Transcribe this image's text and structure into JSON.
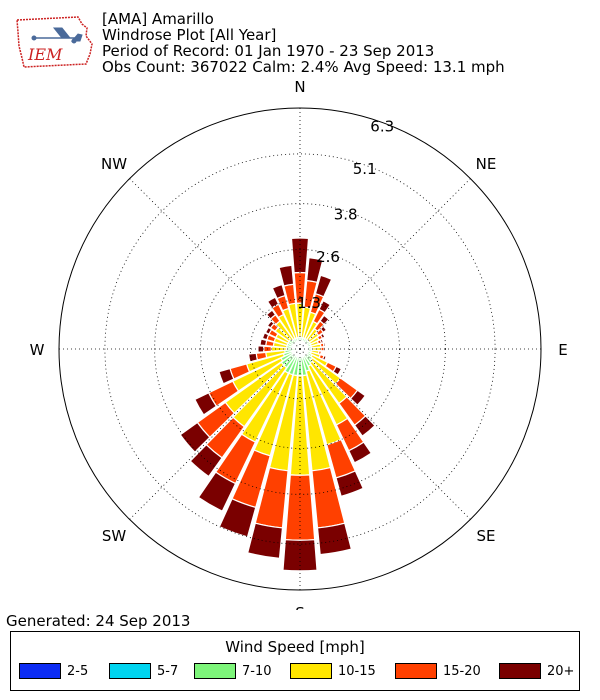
{
  "logo_text": "IEM",
  "header": {
    "station": "[AMA] Amarillo",
    "plot_title": "Windrose Plot [All Year]",
    "period": "Period of Record: 01 Jan 1970 - 23 Sep 2013",
    "stats": "Obs Count: 367022 Calm: 2.4% Avg Speed: 13.1 mph"
  },
  "generated": "Generated: 24 Sep 2013",
  "legend": {
    "title": "Wind Speed [mph]",
    "items": [
      {
        "label": "2-5",
        "color": "#0c2cf4"
      },
      {
        "label": "5-7",
        "color": "#00d4f0"
      },
      {
        "label": "7-10",
        "color": "#7df57a"
      },
      {
        "label": "10-15",
        "color": "#ffe600"
      },
      {
        "label": "15-20",
        "color": "#ff4000"
      },
      {
        "label": "20+",
        "color": "#7a0000"
      }
    ]
  },
  "chart_data": {
    "type": "windrose",
    "radial_ticks": [
      1.3,
      2.6,
      3.8,
      5.1,
      6.3
    ],
    "radial_max": 6.3,
    "direction_labels": [
      "N",
      "NE",
      "E",
      "SE",
      "S",
      "SW",
      "W",
      "NW"
    ],
    "bin_width_deg": 10,
    "bins": [
      "2-5",
      "5-7",
      "7-10",
      "10-15",
      "15-20",
      "20+"
    ],
    "series": [
      {
        "dir": 0,
        "values": [
          0.0,
          0.1,
          0.2,
          0.9,
          0.8,
          0.9
        ]
      },
      {
        "dir": 10,
        "values": [
          0.0,
          0.1,
          0.2,
          0.8,
          0.7,
          0.6
        ]
      },
      {
        "dir": 20,
        "values": [
          0.0,
          0.1,
          0.2,
          0.7,
          0.5,
          0.5
        ]
      },
      {
        "dir": 30,
        "values": [
          0.0,
          0.1,
          0.2,
          0.5,
          0.35,
          0.25
        ]
      },
      {
        "dir": 40,
        "values": [
          0.0,
          0.1,
          0.2,
          0.35,
          0.25,
          0.18
        ]
      },
      {
        "dir": 50,
        "values": [
          0.0,
          0.1,
          0.2,
          0.3,
          0.15,
          0.1
        ]
      },
      {
        "dir": 60,
        "values": [
          0.0,
          0.1,
          0.2,
          0.25,
          0.1,
          0.07
        ]
      },
      {
        "dir": 70,
        "values": [
          0.0,
          0.1,
          0.2,
          0.2,
          0.08,
          0.05
        ]
      },
      {
        "dir": 80,
        "values": [
          0.0,
          0.1,
          0.2,
          0.25,
          0.08,
          0.04
        ]
      },
      {
        "dir": 90,
        "values": [
          0.0,
          0.1,
          0.2,
          0.25,
          0.08,
          0.04
        ]
      },
      {
        "dir": 100,
        "values": [
          0.0,
          0.1,
          0.2,
          0.2,
          0.06,
          0.03
        ]
      },
      {
        "dir": 110,
        "values": [
          0.0,
          0.1,
          0.2,
          0.25,
          0.1,
          0.06
        ]
      },
      {
        "dir": 120,
        "values": [
          0.0,
          0.1,
          0.25,
          0.45,
          0.25,
          0.15
        ]
      },
      {
        "dir": 130,
        "values": [
          0.0,
          0.1,
          0.3,
          0.9,
          0.55,
          0.25
        ]
      },
      {
        "dir": 140,
        "values": [
          0.0,
          0.1,
          0.35,
          1.3,
          0.7,
          0.35
        ]
      },
      {
        "dir": 150,
        "values": [
          0.0,
          0.1,
          0.4,
          1.7,
          0.75,
          0.35
        ]
      },
      {
        "dir": 160,
        "values": [
          0.0,
          0.1,
          0.5,
          2.0,
          0.9,
          0.5
        ]
      },
      {
        "dir": 170,
        "values": [
          0.0,
          0.1,
          0.6,
          2.5,
          1.5,
          0.7
        ]
      },
      {
        "dir": 180,
        "values": [
          0.0,
          0.1,
          0.6,
          2.6,
          1.7,
          0.8
        ]
      },
      {
        "dir": 190,
        "values": [
          0.0,
          0.1,
          0.6,
          2.5,
          1.5,
          0.8
        ]
      },
      {
        "dir": 200,
        "values": [
          0.0,
          0.1,
          0.6,
          2.2,
          1.4,
          0.8
        ]
      },
      {
        "dir": 210,
        "values": [
          0.0,
          0.1,
          0.6,
          2.0,
          1.2,
          0.8
        ]
      },
      {
        "dir": 220,
        "values": [
          0.0,
          0.1,
          0.5,
          1.9,
          1.0,
          0.6
        ]
      },
      {
        "dir": 230,
        "values": [
          0.0,
          0.1,
          0.5,
          1.8,
          0.9,
          0.55
        ]
      },
      {
        "dir": 240,
        "values": [
          0.0,
          0.1,
          0.45,
          1.4,
          0.7,
          0.4
        ]
      },
      {
        "dir": 250,
        "values": [
          0.0,
          0.1,
          0.35,
          1.0,
          0.45,
          0.3
        ]
      },
      {
        "dir": 260,
        "values": [
          0.0,
          0.1,
          0.3,
          0.5,
          0.25,
          0.2
        ]
      },
      {
        "dir": 270,
        "values": [
          0.0,
          0.1,
          0.25,
          0.4,
          0.2,
          0.15
        ]
      },
      {
        "dir": 280,
        "values": [
          0.0,
          0.1,
          0.25,
          0.35,
          0.2,
          0.15
        ]
      },
      {
        "dir": 290,
        "values": [
          0.0,
          0.1,
          0.25,
          0.35,
          0.2,
          0.12
        ]
      },
      {
        "dir": 300,
        "values": [
          0.0,
          0.1,
          0.25,
          0.35,
          0.2,
          0.1
        ]
      },
      {
        "dir": 310,
        "values": [
          0.0,
          0.1,
          0.25,
          0.45,
          0.15,
          0.1
        ]
      },
      {
        "dir": 320,
        "values": [
          0.0,
          0.1,
          0.2,
          0.6,
          0.2,
          0.15
        ]
      },
      {
        "dir": 330,
        "values": [
          0.0,
          0.1,
          0.2,
          0.7,
          0.3,
          0.2
        ]
      },
      {
        "dir": 340,
        "values": [
          0.0,
          0.1,
          0.2,
          0.8,
          0.35,
          0.3
        ]
      },
      {
        "dir": 350,
        "values": [
          0.0,
          0.1,
          0.2,
          0.9,
          0.5,
          0.5
        ]
      }
    ]
  }
}
